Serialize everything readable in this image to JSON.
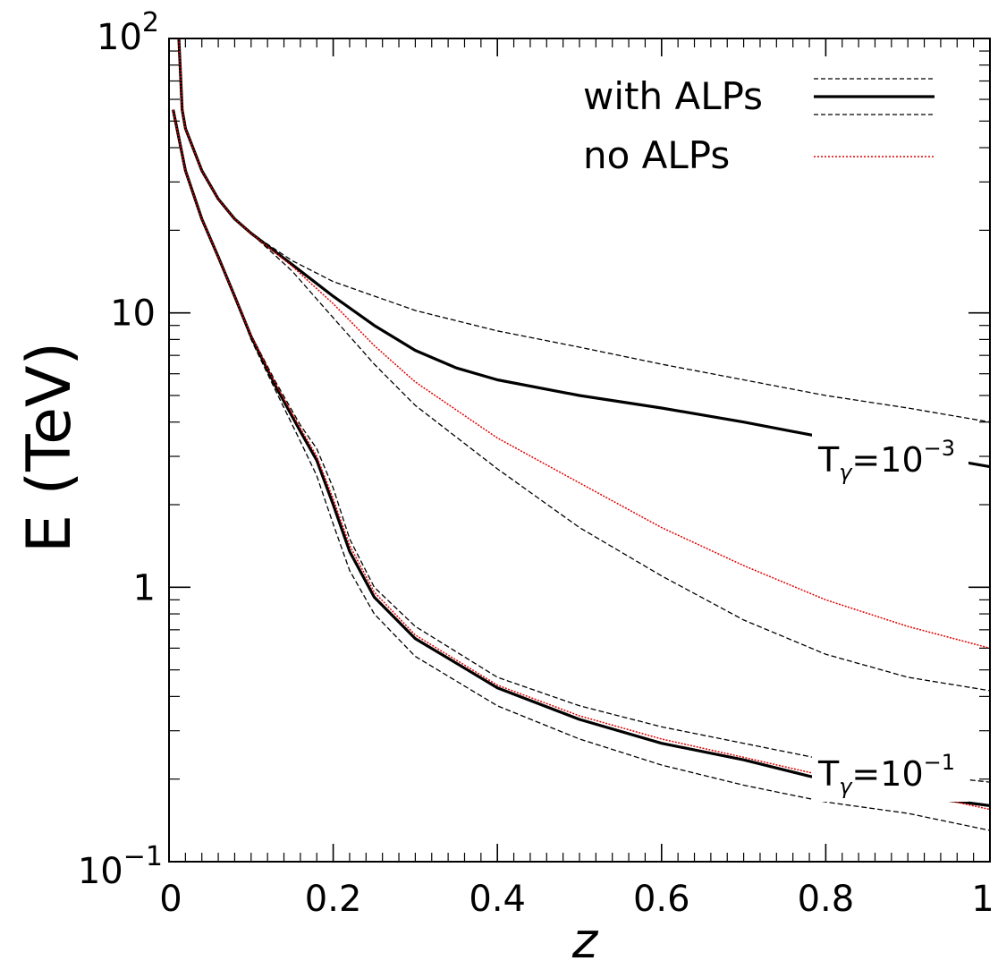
{
  "chart_data": {
    "type": "line",
    "xlabel": "z",
    "ylabel": "E (TeV)",
    "xlim": [
      0,
      1
    ],
    "ylim": [
      0.1,
      100
    ],
    "yscale": "log",
    "grid": false,
    "legend_placement": "top-right",
    "x_ticks": [
      {
        "value": 0,
        "label": "0"
      },
      {
        "value": 0.2,
        "label": "0.2"
      },
      {
        "value": 0.4,
        "label": "0.4"
      },
      {
        "value": 0.6,
        "label": "0.6"
      },
      {
        "value": 0.8,
        "label": "0.8"
      },
      {
        "value": 1,
        "label": "1"
      }
    ],
    "y_ticks": [
      {
        "value": 0.1,
        "base": "10",
        "exp": "−1"
      },
      {
        "value": 1,
        "base": "1",
        "exp": ""
      },
      {
        "value": 10,
        "base": "10",
        "exp": ""
      },
      {
        "value": 100,
        "base": "10",
        "exp": "2"
      }
    ],
    "legend": [
      {
        "label": "with ALPs",
        "style": "solid-with-dashed-band",
        "color": "#000000"
      },
      {
        "label": "no ALPs",
        "style": "dotted",
        "color": "#e00000"
      }
    ],
    "annotations": [
      {
        "text_base": "T",
        "text_sub": "γ",
        "text_eq": "=10",
        "text_exp": "−3"
      },
      {
        "text_base": "T",
        "text_sub": "γ",
        "text_eq": "=10",
        "text_exp": "−1"
      }
    ],
    "series": [
      {
        "group": "T=1e-3",
        "role": "with-ALPs upper band",
        "style": "dashed",
        "color": "#000000",
        "x": [
          0.012,
          0.016,
          0.02,
          0.04,
          0.06,
          0.08,
          0.1,
          0.15,
          0.2,
          0.3,
          0.4,
          0.5,
          0.6,
          0.7,
          0.8,
          0.9,
          1.0
        ],
        "y": [
          100,
          55,
          47,
          33,
          26,
          22,
          19.5,
          15.5,
          13,
          10.2,
          8.6,
          7.5,
          6.5,
          5.7,
          5.0,
          4.5,
          4.0
        ]
      },
      {
        "group": "T=1e-3",
        "role": "with-ALPs median",
        "style": "solid",
        "color": "#000000",
        "x": [
          0.012,
          0.016,
          0.02,
          0.04,
          0.06,
          0.08,
          0.1,
          0.15,
          0.2,
          0.25,
          0.3,
          0.35,
          0.4,
          0.5,
          0.6,
          0.7,
          0.78,
          0.9,
          1.0
        ],
        "y": [
          100,
          55,
          47,
          33,
          26,
          22,
          19.5,
          15,
          11.5,
          9.0,
          7.3,
          6.3,
          5.7,
          5.0,
          4.5,
          4.0,
          3.6,
          3.1,
          2.75
        ]
      },
      {
        "group": "T=1e-3",
        "role": "with-ALPs lower band",
        "style": "dashed",
        "color": "#000000",
        "x": [
          0.012,
          0.016,
          0.02,
          0.04,
          0.06,
          0.08,
          0.1,
          0.15,
          0.2,
          0.25,
          0.3,
          0.4,
          0.5,
          0.6,
          0.7,
          0.8,
          0.9,
          1.0
        ],
        "y": [
          100,
          55,
          47,
          33,
          26,
          22,
          19.5,
          14.2,
          9.6,
          6.5,
          4.6,
          2.7,
          1.65,
          1.1,
          0.76,
          0.57,
          0.47,
          0.42
        ]
      },
      {
        "group": "T=1e-3",
        "role": "no ALPs",
        "style": "dotted",
        "color": "#e00000",
        "x": [
          0.012,
          0.016,
          0.02,
          0.04,
          0.06,
          0.08,
          0.1,
          0.15,
          0.2,
          0.25,
          0.3,
          0.4,
          0.5,
          0.6,
          0.7,
          0.8,
          0.9,
          1.0
        ],
        "y": [
          100,
          55,
          47,
          33,
          26,
          22,
          19.5,
          14.8,
          10.8,
          7.6,
          5.6,
          3.5,
          2.4,
          1.65,
          1.2,
          0.9,
          0.72,
          0.6
        ]
      },
      {
        "group": "T=1e-1",
        "role": "with-ALPs upper band",
        "style": "dashed",
        "color": "#000000",
        "x": [
          0.005,
          0.02,
          0.04,
          0.06,
          0.08,
          0.1,
          0.13,
          0.16,
          0.18,
          0.2,
          0.22,
          0.25,
          0.3,
          0.4,
          0.5,
          0.6,
          0.7,
          0.8,
          0.9,
          1.0
        ],
        "y": [
          55,
          33,
          22,
          16,
          11.5,
          8.3,
          5.6,
          3.9,
          3.2,
          2.3,
          1.5,
          1.0,
          0.72,
          0.47,
          0.37,
          0.31,
          0.27,
          0.235,
          0.21,
          0.195
        ]
      },
      {
        "group": "T=1e-1",
        "role": "with-ALPs median",
        "style": "solid",
        "color": "#000000",
        "x": [
          0.005,
          0.02,
          0.04,
          0.06,
          0.08,
          0.1,
          0.13,
          0.16,
          0.18,
          0.2,
          0.22,
          0.25,
          0.3,
          0.4,
          0.5,
          0.6,
          0.7,
          0.78,
          0.9,
          1.0
        ],
        "y": [
          55,
          33,
          22,
          16,
          11.5,
          8.2,
          5.4,
          3.7,
          2.9,
          2.0,
          1.35,
          0.92,
          0.65,
          0.43,
          0.33,
          0.27,
          0.235,
          0.205,
          0.175,
          0.16
        ]
      },
      {
        "group": "T=1e-1",
        "role": "with-ALPs lower band",
        "style": "dashed",
        "color": "#000000",
        "x": [
          0.005,
          0.02,
          0.04,
          0.06,
          0.08,
          0.1,
          0.13,
          0.16,
          0.18,
          0.2,
          0.22,
          0.25,
          0.3,
          0.4,
          0.5,
          0.6,
          0.7,
          0.8,
          0.9,
          1.0
        ],
        "y": [
          55,
          33,
          22,
          16,
          11.5,
          8.0,
          5.2,
          3.4,
          2.55,
          1.7,
          1.15,
          0.8,
          0.56,
          0.37,
          0.28,
          0.225,
          0.19,
          0.165,
          0.15,
          0.13
        ]
      },
      {
        "group": "T=1e-1",
        "role": "no ALPs",
        "style": "dotted",
        "color": "#e00000",
        "x": [
          0.005,
          0.02,
          0.04,
          0.06,
          0.08,
          0.1,
          0.13,
          0.16,
          0.18,
          0.2,
          0.22,
          0.25,
          0.3,
          0.4,
          0.5,
          0.6,
          0.7,
          0.8,
          0.9,
          1.0
        ],
        "y": [
          55,
          33,
          22,
          16,
          11.5,
          8.25,
          5.5,
          3.8,
          3.0,
          2.1,
          1.42,
          0.96,
          0.67,
          0.44,
          0.34,
          0.28,
          0.24,
          0.205,
          0.18,
          0.155
        ]
      }
    ]
  }
}
